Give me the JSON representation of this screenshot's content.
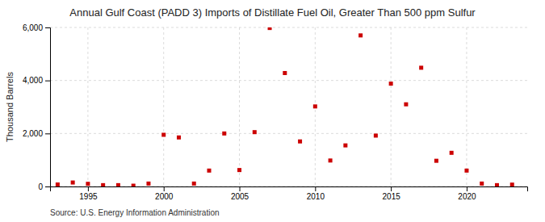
{
  "chart_data": {
    "type": "scatter",
    "title": "Annual Gulf Coast (PADD 3) Imports of Distillate Fuel Oil, Greater Than 500 ppm Sulfur",
    "ylabel": "Thousand Barrels",
    "source": "Source: U.S. Energy Information Administration",
    "x": [
      1993,
      1994,
      1995,
      1996,
      1997,
      1998,
      1999,
      2000,
      2001,
      2002,
      2003,
      2004,
      2005,
      2006,
      2007,
      2008,
      2009,
      2010,
      2011,
      2012,
      2013,
      2014,
      2015,
      2016,
      2017,
      2018,
      2019,
      2020,
      2021,
      2022,
      2023
    ],
    "values": [
      75,
      150,
      100,
      50,
      50,
      30,
      110,
      1950,
      1850,
      110,
      600,
      2000,
      620,
      2050,
      5980,
      4280,
      1700,
      3020,
      980,
      1550,
      5700,
      1920,
      3880,
      3100,
      4480,
      970,
      1270,
      600,
      110,
      50,
      70
    ],
    "color": "#cc0000",
    "marker": "square",
    "xlim": [
      1992.5,
      2024
    ],
    "xticks": [
      1995,
      2000,
      2005,
      2010,
      2015,
      2020
    ],
    "ylim": [
      0,
      6000
    ],
    "yticks": [
      0,
      {
        "value": 2000,
        "label": "2,000"
      },
      {
        "value": 4000,
        "label": "4,000"
      },
      {
        "value": 6000,
        "label": "6,000"
      }
    ],
    "grid": true
  }
}
